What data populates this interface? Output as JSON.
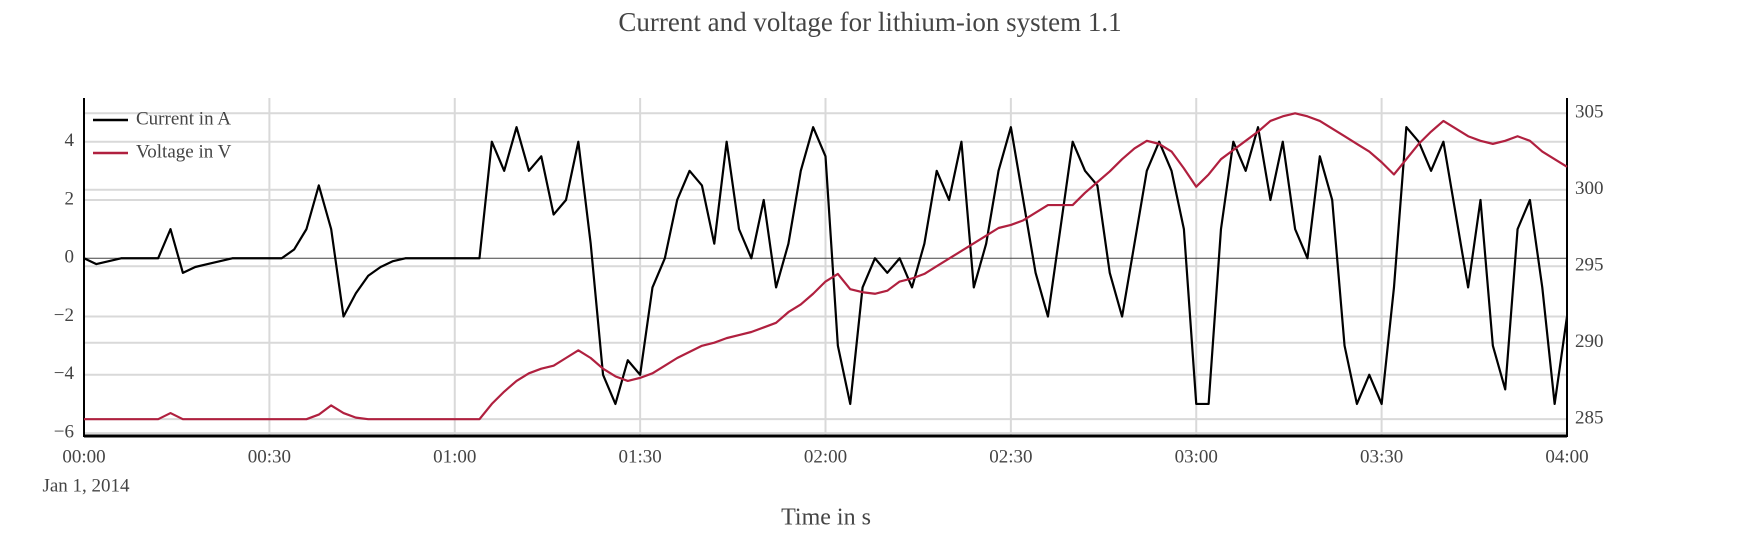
{
  "chart_data": {
    "type": "line",
    "title": "Current and voltage for lithium-ion system 1.1",
    "x_label": "Time in s",
    "x_date_label": "Jan 1, 2014",
    "x": [
      "2014-01-01 00:00",
      "2014-01-01 00:02",
      "2014-01-01 00:04",
      "2014-01-01 00:06",
      "2014-01-01 00:08",
      "2014-01-01 00:10",
      "2014-01-01 00:12",
      "2014-01-01 00:14",
      "2014-01-01 00:16",
      "2014-01-01 00:18",
      "2014-01-01 00:20",
      "2014-01-01 00:22",
      "2014-01-01 00:24",
      "2014-01-01 00:26",
      "2014-01-01 00:28",
      "2014-01-01 00:30",
      "2014-01-01 00:32",
      "2014-01-01 00:34",
      "2014-01-01 00:36",
      "2014-01-01 00:38",
      "2014-01-01 00:40",
      "2014-01-01 00:42",
      "2014-01-01 00:44",
      "2014-01-01 00:46",
      "2014-01-01 00:48",
      "2014-01-01 00:50",
      "2014-01-01 00:52",
      "2014-01-01 00:54",
      "2014-01-01 00:56",
      "2014-01-01 00:58",
      "2014-01-01 01:00",
      "2014-01-01 01:02",
      "2014-01-01 01:04",
      "2014-01-01 01:06",
      "2014-01-01 01:08",
      "2014-01-01 01:10",
      "2014-01-01 01:12",
      "2014-01-01 01:14",
      "2014-01-01 01:16",
      "2014-01-01 01:18",
      "2014-01-01 01:20",
      "2014-01-01 01:22",
      "2014-01-01 01:24",
      "2014-01-01 01:26",
      "2014-01-01 01:28",
      "2014-01-01 01:30",
      "2014-01-01 01:32",
      "2014-01-01 01:34",
      "2014-01-01 01:36",
      "2014-01-01 01:38",
      "2014-01-01 01:40",
      "2014-01-01 01:42",
      "2014-01-01 01:44",
      "2014-01-01 01:46",
      "2014-01-01 01:48",
      "2014-01-01 01:50",
      "2014-01-01 01:52",
      "2014-01-01 01:54",
      "2014-01-01 01:56",
      "2014-01-01 01:58",
      "2014-01-01 02:00",
      "2014-01-01 02:02",
      "2014-01-01 02:04",
      "2014-01-01 02:06",
      "2014-01-01 02:08",
      "2014-01-01 02:10",
      "2014-01-01 02:12",
      "2014-01-01 02:14",
      "2014-01-01 02:16",
      "2014-01-01 02:18",
      "2014-01-01 02:20",
      "2014-01-01 02:22",
      "2014-01-01 02:24",
      "2014-01-01 02:26",
      "2014-01-01 02:28",
      "2014-01-01 02:30",
      "2014-01-01 02:32",
      "2014-01-01 02:34",
      "2014-01-01 02:36",
      "2014-01-01 02:38",
      "2014-01-01 02:40",
      "2014-01-01 02:42",
      "2014-01-01 02:44",
      "2014-01-01 02:46",
      "2014-01-01 02:48",
      "2014-01-01 02:50",
      "2014-01-01 02:52",
      "2014-01-01 02:54",
      "2014-01-01 02:56",
      "2014-01-01 02:58",
      "2014-01-01 03:00",
      "2014-01-01 03:02",
      "2014-01-01 03:04",
      "2014-01-01 03:06",
      "2014-01-01 03:08",
      "2014-01-01 03:10",
      "2014-01-01 03:12",
      "2014-01-01 03:14",
      "2014-01-01 03:16",
      "2014-01-01 03:18",
      "2014-01-01 03:20",
      "2014-01-01 03:22",
      "2014-01-01 03:24",
      "2014-01-01 03:26",
      "2014-01-01 03:28",
      "2014-01-01 03:30",
      "2014-01-01 03:32",
      "2014-01-01 03:34",
      "2014-01-01 03:36",
      "2014-01-01 03:38",
      "2014-01-01 03:40",
      "2014-01-01 03:42",
      "2014-01-01 03:44",
      "2014-01-01 03:46",
      "2014-01-01 03:48",
      "2014-01-01 03:50",
      "2014-01-01 03:52",
      "2014-01-01 03:54",
      "2014-01-01 03:56",
      "2014-01-01 03:58",
      "2014-01-01 04:00"
    ],
    "series": [
      {
        "name": "Current in A",
        "color": "#000000",
        "axis": "y",
        "values": [
          0,
          -0.2,
          -0.1,
          0,
          0,
          0,
          0,
          1,
          -0.5,
          -0.3,
          -0.2,
          -0.1,
          0,
          0,
          0,
          0,
          0,
          0.3,
          1,
          2.5,
          1,
          -2,
          -1.2,
          -0.6,
          -0.3,
          -0.1,
          0,
          0,
          0,
          0,
          0,
          0,
          0,
          4,
          3,
          4.5,
          3,
          3.5,
          1.5,
          2,
          4,
          0.5,
          -4,
          -5,
          -3.5,
          -4,
          -1,
          0,
          2,
          3,
          2.5,
          0.5,
          4,
          1,
          0,
          2,
          -1,
          0.5,
          3,
          4.5,
          3.5,
          -3,
          -5,
          -1,
          0,
          -0.5,
          0,
          -1,
          0.5,
          3,
          2,
          4,
          -1,
          0.5,
          3,
          4.5,
          2,
          -0.5,
          -2,
          1,
          4,
          3,
          2.5,
          -0.5,
          -2,
          0.5,
          3,
          4,
          3,
          1,
          -5,
          -5,
          1,
          4,
          3,
          4.5,
          2,
          4,
          1,
          0,
          3.5,
          2,
          -3,
          -5,
          -4,
          -5,
          -1,
          4.5,
          4,
          3,
          4,
          1.5,
          -1,
          2,
          -3,
          -4.5,
          1,
          2,
          -1,
          -5,
          -2
        ]
      },
      {
        "name": "Voltage in V",
        "color": "#b0203f",
        "axis": "y2",
        "values": [
          285,
          285,
          285,
          285,
          285,
          285,
          285,
          285.4,
          285,
          285,
          285,
          285,
          285,
          285,
          285,
          285,
          285,
          285,
          285,
          285.3,
          285.9,
          285.4,
          285.1,
          285,
          285,
          285,
          285,
          285,
          285,
          285,
          285,
          285,
          285,
          286,
          286.8,
          287.5,
          288,
          288.3,
          288.5,
          289,
          289.5,
          289,
          288.3,
          287.8,
          287.5,
          287.7,
          288,
          288.5,
          289,
          289.4,
          289.8,
          290,
          290.3,
          290.5,
          290.7,
          291,
          291.3,
          292,
          292.5,
          293.2,
          294,
          294.5,
          293.5,
          293.3,
          293.2,
          293.4,
          294,
          294.2,
          294.5,
          295,
          295.5,
          296,
          296.5,
          297,
          297.5,
          297.7,
          298,
          298.5,
          299,
          299,
          299,
          299.8,
          300.5,
          301.2,
          302,
          302.7,
          303.2,
          303,
          302.5,
          301.4,
          300.2,
          301,
          302,
          302.6,
          303.2,
          303.8,
          304.5,
          304.8,
          305,
          304.8,
          304.5,
          304,
          303.5,
          303,
          302.5,
          301.8,
          301,
          302,
          303,
          303.8,
          304.5,
          304,
          303.5,
          303.2,
          303,
          303.2,
          303.5,
          303.2,
          302.5,
          302,
          301.5
        ]
      }
    ],
    "xlim": [
      "2014-01-01 00:00",
      "2014-01-01 04:00"
    ],
    "xticks": [
      {
        "value": "2014-01-01 00:00",
        "label": "00:00"
      },
      {
        "value": "2014-01-01 00:30",
        "label": "00:30"
      },
      {
        "value": "2014-01-01 01:00",
        "label": "01:00"
      },
      {
        "value": "2014-01-01 01:30",
        "label": "01:30"
      },
      {
        "value": "2014-01-01 02:00",
        "label": "02:00"
      },
      {
        "value": "2014-01-01 02:30",
        "label": "02:30"
      },
      {
        "value": "2014-01-01 03:00",
        "label": "03:00"
      },
      {
        "value": "2014-01-01 03:30",
        "label": "03:30"
      },
      {
        "value": "2014-01-01 04:00",
        "label": "04:00"
      }
    ],
    "ylim": [
      -6.1,
      5.5
    ],
    "yticks": [
      {
        "value": -6,
        "label": "−6"
      },
      {
        "value": -4,
        "label": "−4"
      },
      {
        "value": -2,
        "label": "−2"
      },
      0,
      2,
      4
    ],
    "y2lim": [
      283.9,
      306
    ],
    "y2ticks": [
      285,
      290,
      295,
      300,
      305
    ],
    "grid": true,
    "legend": "top-left"
  }
}
